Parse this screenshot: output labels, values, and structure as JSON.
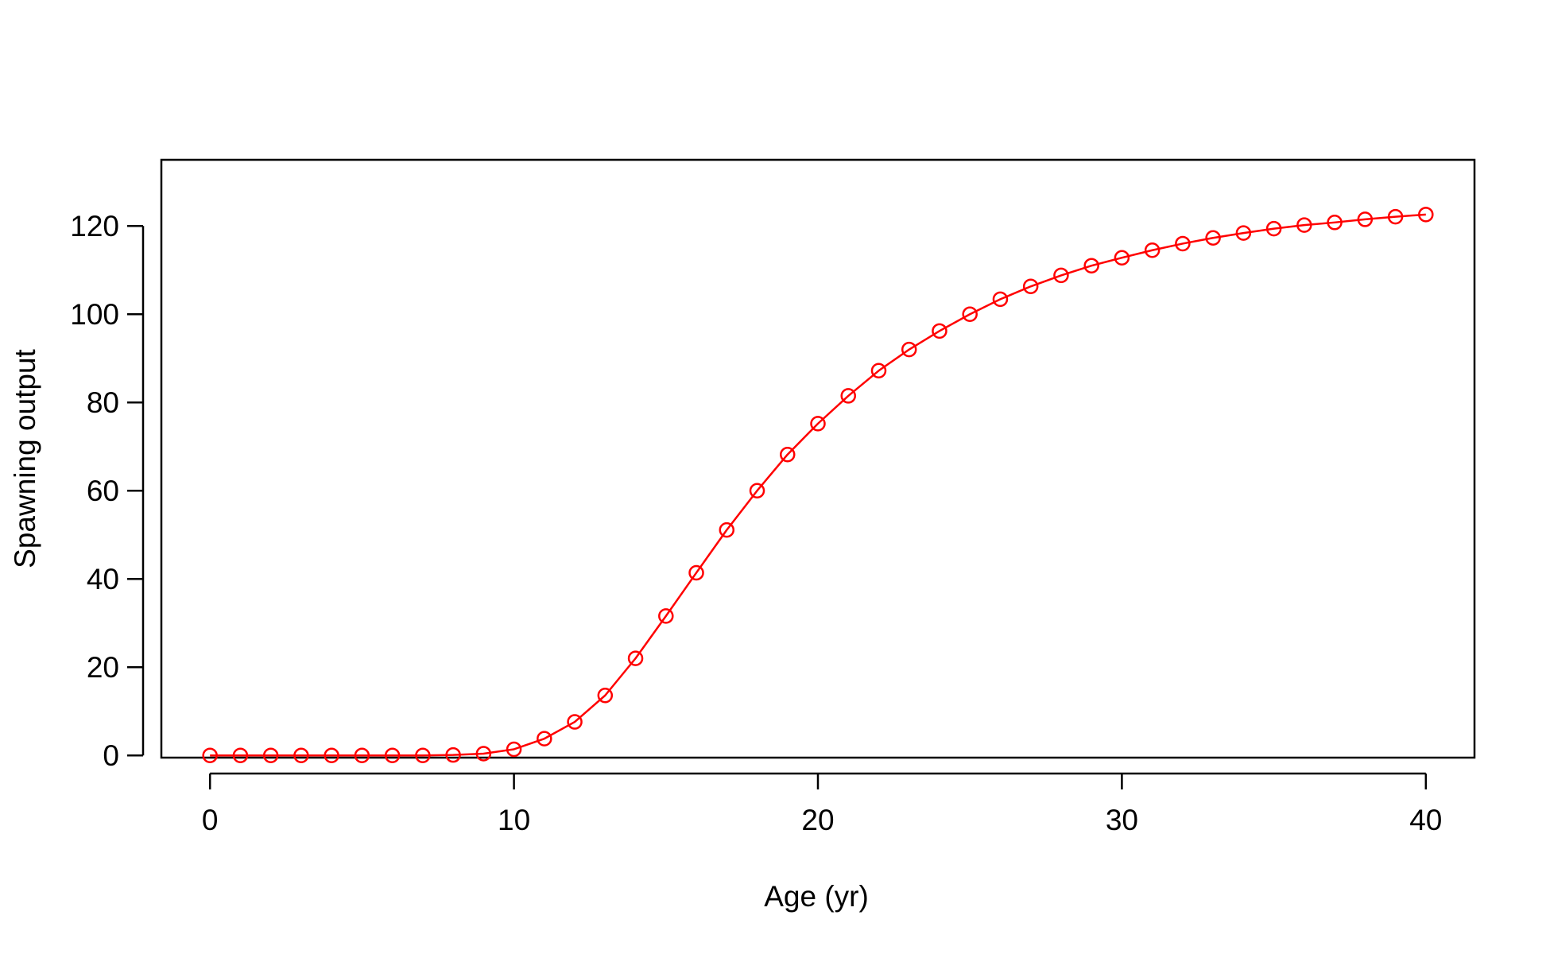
{
  "chart_data": {
    "type": "line",
    "xlabel": "Age (yr)",
    "ylabel": "Spawning output",
    "xlim": [
      -1.6,
      41.6
    ],
    "ylim": [
      -0.5,
      135
    ],
    "x_ticks": [
      0,
      10,
      20,
      30,
      40
    ],
    "x_tick_labels": [
      "0",
      "10",
      "20",
      "30",
      "40"
    ],
    "y_ticks": [
      0,
      20,
      40,
      60,
      80,
      100,
      120
    ],
    "y_tick_labels": [
      "0",
      "20",
      "40",
      "60",
      "80",
      "100",
      "120"
    ],
    "grid": false,
    "markers": "open-circle",
    "series": [
      {
        "color": "#ff0000",
        "x": [
          0,
          1,
          2,
          3,
          4,
          5,
          6,
          7,
          8,
          9,
          10,
          11,
          12,
          13,
          14,
          15,
          16,
          17,
          18,
          19,
          20,
          21,
          22,
          23,
          24,
          25,
          26,
          27,
          28,
          29,
          30,
          31,
          32,
          33,
          34,
          35,
          36,
          37,
          38,
          39,
          40
        ],
        "values": [
          0,
          0,
          0,
          0,
          0,
          0,
          0,
          0,
          0.1,
          0.4,
          1.4,
          3.8,
          7.6,
          13.6,
          22,
          31.6,
          41.4,
          51.1,
          60,
          68.2,
          75.2,
          81.5,
          87.2,
          92,
          96.2,
          100,
          103.4,
          106.3,
          108.8,
          111,
          112.8,
          114.5,
          116,
          117.3,
          118.4,
          119.4,
          120.2,
          120.8,
          121.5,
          122.1,
          122.6
        ]
      }
    ]
  }
}
